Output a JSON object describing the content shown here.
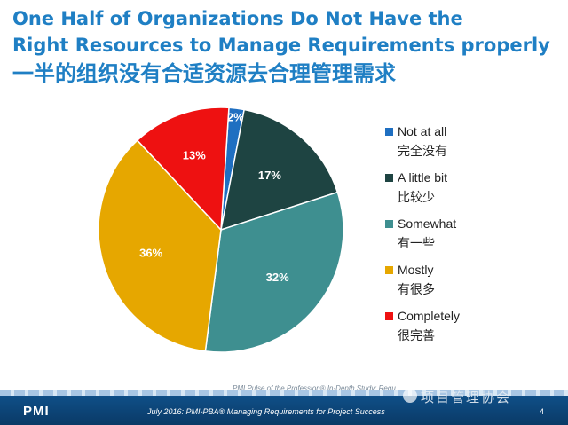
{
  "title": {
    "line1": "One Half of Organizations Do Not Have the",
    "line2": "Right Resources to Manage Requirements properly",
    "line3": "一半的组织没有合适资源去合理管理需求"
  },
  "chart_data": {
    "type": "pie",
    "title": "",
    "slices": [
      {
        "label": "Not at all",
        "label_cn": "完全没有",
        "value": 2,
        "value_label": "2%",
        "color": "#1f6fc1"
      },
      {
        "label": "A little bit",
        "label_cn": "比较少",
        "value": 17,
        "value_label": "17%",
        "color": "#1e4442"
      },
      {
        "label": "Somewhat",
        "label_cn": "有一些",
        "value": 32,
        "value_label": "32%",
        "color": "#3e8f90"
      },
      {
        "label": "Mostly",
        "label_cn": "有很多",
        "value": 36,
        "value_label": "36%",
        "color": "#e6a700"
      },
      {
        "label": "Completely",
        "label_cn": "很完善",
        "value": 13,
        "value_label": "13%",
        "color": "#ee1111"
      }
    ],
    "legend_position": "right"
  },
  "source_note": "PMI Pulse of the Profession® In-Depth Study: Requ",
  "footer": {
    "logo": "PMI",
    "text": "July 2016: PMI-PBA® Managing Requirements for Project Success",
    "page_number": "4"
  },
  "watermark": "项目管理协会"
}
